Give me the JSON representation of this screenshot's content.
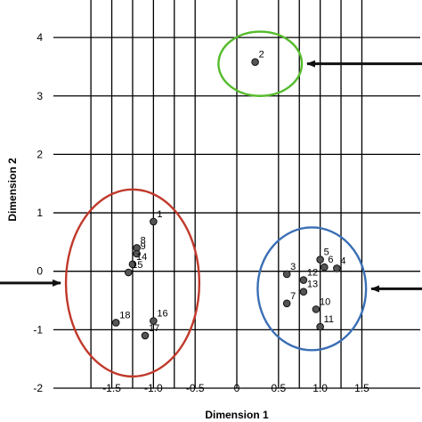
{
  "chart_data": {
    "type": "scatter",
    "xlabel": "Dimension 1",
    "ylabel": "Dimension 2",
    "xlim": [
      -2.2,
      2.2
    ],
    "ylim": [
      -2,
      4.55
    ],
    "x_ticks": [
      -1.5,
      -1.0,
      -0.5,
      0,
      0.5,
      1.0,
      1.5
    ],
    "x_tick_labels": [
      "-1.5",
      "-1.0",
      "-0.5",
      "0",
      "0.5",
      "1.0",
      "1.5"
    ],
    "y_ticks": [
      -2,
      -1,
      0,
      1,
      2,
      3,
      4
    ],
    "y_tick_labels": [
      "-2",
      "-1",
      "0",
      "1",
      "2",
      "3",
      "4"
    ],
    "extra_vertical_grid_x": [
      -1.75,
      -1.25,
      -0.75,
      0.75,
      1.25
    ],
    "grid": true,
    "points": [
      {
        "label": "1",
        "x": -1.0,
        "y": 0.85
      },
      {
        "label": "2",
        "x": 0.22,
        "y": 3.58
      },
      {
        "label": "3",
        "x": 0.6,
        "y": -0.05
      },
      {
        "label": "4",
        "x": 1.2,
        "y": 0.05
      },
      {
        "label": "5",
        "x": 1.0,
        "y": 0.2
      },
      {
        "label": "6",
        "x": 1.05,
        "y": 0.07
      },
      {
        "label": "7",
        "x": 0.6,
        "y": -0.55
      },
      {
        "label": "8",
        "x": -1.2,
        "y": 0.4
      },
      {
        "label": "9",
        "x": -1.2,
        "y": 0.3
      },
      {
        "label": "10",
        "x": 0.95,
        "y": -0.65
      },
      {
        "label": "11",
        "x": 1.0,
        "y": -0.95
      },
      {
        "label": "12",
        "x": 0.8,
        "y": -0.15
      },
      {
        "label": "13",
        "x": 0.8,
        "y": -0.35
      },
      {
        "label": "14",
        "x": -1.25,
        "y": 0.12
      },
      {
        "label": "15",
        "x": -1.3,
        "y": -0.02
      },
      {
        "label": "16",
        "x": -1.0,
        "y": -0.85
      },
      {
        "label": "17",
        "x": -1.1,
        "y": -1.1
      },
      {
        "label": "18",
        "x": -1.45,
        "y": -0.88
      }
    ],
    "clusters": [
      {
        "color": "#c0392b",
        "cx": -1.25,
        "cy": -0.2,
        "rx": 0.8,
        "ry": 1.6
      },
      {
        "color": "#3a6fb5",
        "cx": 0.9,
        "cy": -0.3,
        "rx": 0.65,
        "ry": 1.05
      },
      {
        "color": "#55bb2b",
        "cx": 0.28,
        "cy": 3.55,
        "rx": 0.5,
        "ry": 0.55
      }
    ],
    "arrows": [
      {
        "target": "cluster-2",
        "direction": "from-right"
      },
      {
        "target": "cluster-0",
        "direction": "from-left"
      },
      {
        "target": "cluster-1",
        "direction": "from-right"
      }
    ]
  }
}
